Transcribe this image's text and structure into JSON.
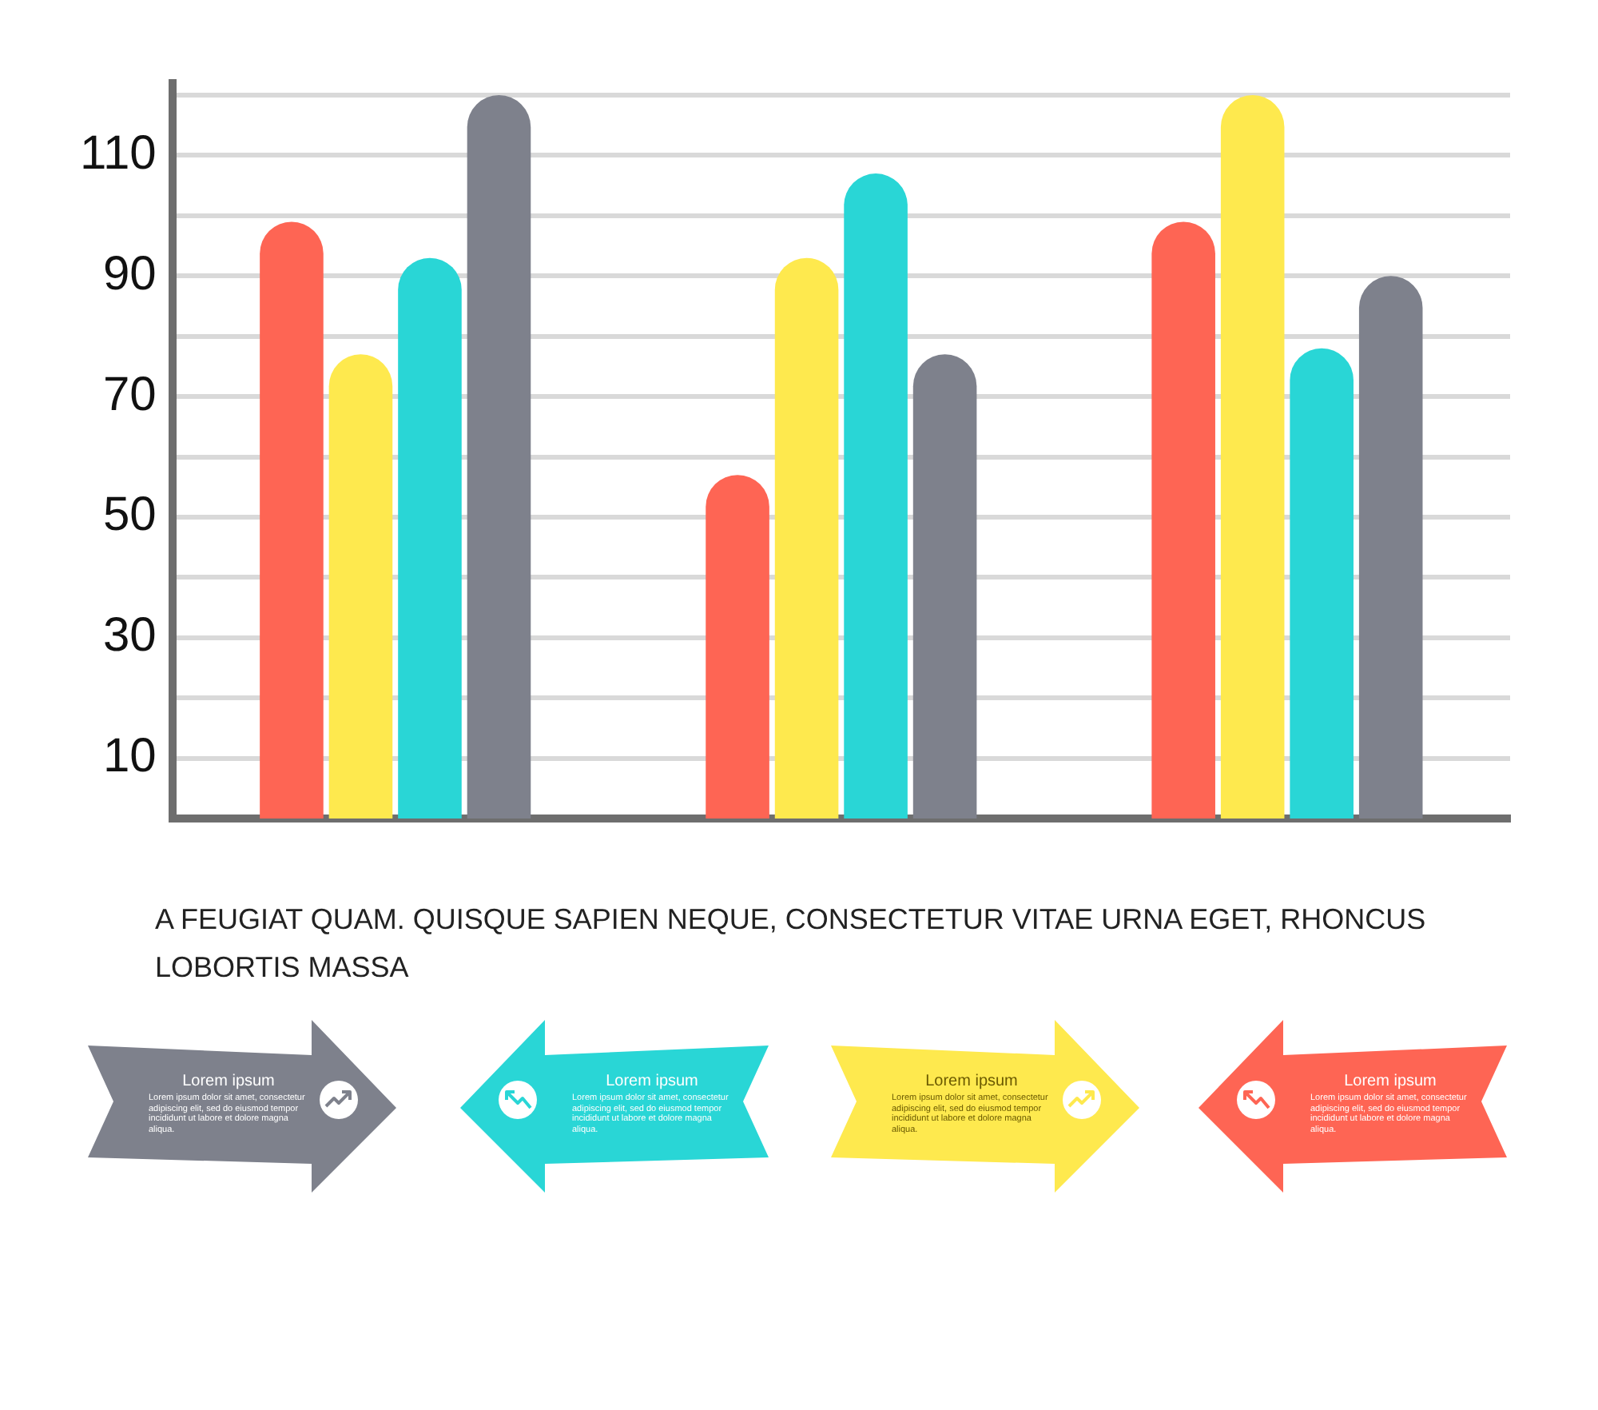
{
  "chart_data": {
    "type": "bar",
    "categories": [
      null,
      null,
      null
    ],
    "series": [
      {
        "color": "#fe6554",
        "values": [
          99,
          57,
          99
        ]
      },
      {
        "color": "#fee94e",
        "values": [
          77,
          93,
          120
        ]
      },
      {
        "color": "#29d6d6",
        "values": [
          93,
          107,
          78
        ]
      },
      {
        "color": "#7e818c",
        "values": [
          120,
          77,
          90
        ]
      }
    ],
    "ylim": [
      0,
      122
    ],
    "yticks": [
      10,
      {
        "value": 20,
        "label": null
      },
      30,
      {
        "value": 40,
        "label": null
      },
      50,
      {
        "value": 60,
        "label": null
      },
      70,
      {
        "value": 80,
        "label": null
      },
      90,
      {
        "value": 100,
        "label": null
      },
      110,
      {
        "value": 120,
        "label": null
      }
    ],
    "grid": "y",
    "tick_labels": "y",
    "annotations": [
      "A FEUGIAT QUAM. QUISQUE SAPIEN NEQUE, CONSECTETUR VITAE URNA EGET, RHONCUS LOBORTIS MASSA",
      "Lorem ipsum",
      "Lorem ipsum dolor sit amet, consectetur adipiscing elit, sed do eiusmod tempor incididunt ut labore et dolore magna aliqua.",
      "Lorem ipsum",
      "Lorem ipsum dolor sit amet, consectetur adipiscing elit, sed do eiusmod tempor incididunt ut labore et dolore magna aliqua.",
      "Lorem ipsum",
      "Lorem ipsum dolor sit amet, consectetur adipiscing elit, sed do eiusmod tempor incididunt ut labore et dolore magna aliqua.",
      "Lorem ipsum",
      "Lorem ipsum dolor sit amet, consectetur adipiscing elit, sed do eiusmod tempor incididunt ut labore et dolore magna aliqua."
    ]
  }
}
